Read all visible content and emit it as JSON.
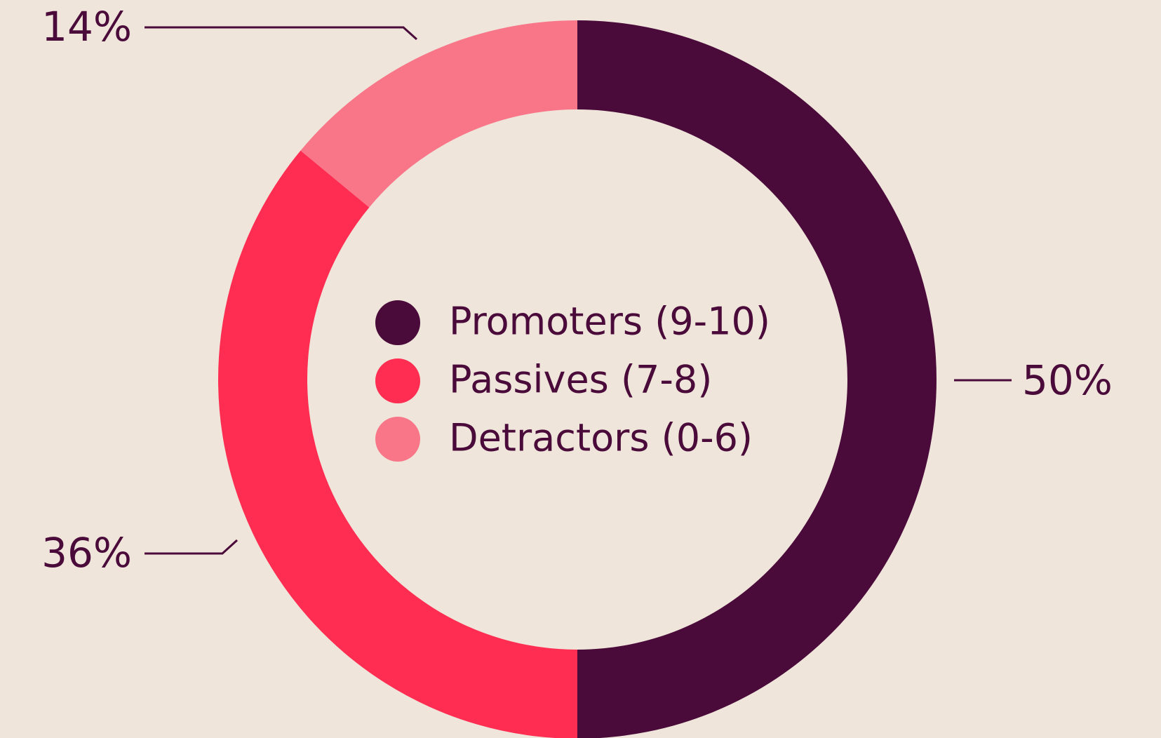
{
  "chart_data": {
    "type": "donut",
    "categories": [
      "Promoters (9-10)",
      "Passives (7-8)",
      "Detractors (0-6)"
    ],
    "values": [
      50,
      36,
      14
    ],
    "value_labels": [
      "50%",
      "36%",
      "14%"
    ],
    "colors": [
      "#4a0b3b",
      "#ff2d52",
      "#f97689"
    ]
  }
}
